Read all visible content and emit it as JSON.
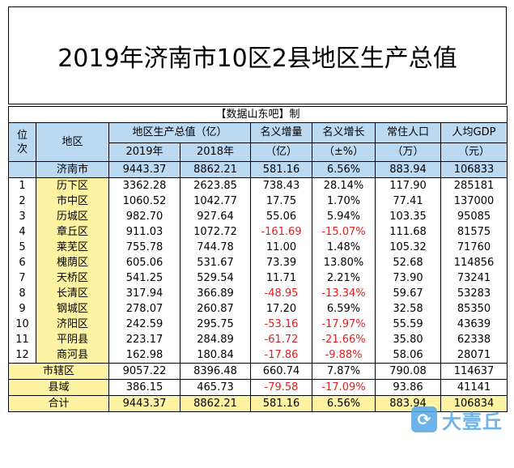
{
  "title": "2019年济南市10区2县地区生产总值",
  "credit": "【数据山东吧】制",
  "headers": {
    "rank": "位次",
    "region": "地区",
    "gdp": "地区生产总值（亿）",
    "y2019": "2019年",
    "y2018": "2018年",
    "nominal_increase_1": "名义增量",
    "nominal_increase_2": "（亿）",
    "nominal_growth_1": "名义增长",
    "nominal_growth_2": "（±%）",
    "population_1": "常住人口",
    "population_2": "（万）",
    "per_capita_1": "人均GDP",
    "per_capita_2": "（元）"
  },
  "city_row": {
    "region": "济南市",
    "y2019": "9443.37",
    "y2018": "8862.21",
    "increase": "581.16",
    "growth": "6.56%",
    "population": "883.94",
    "per_capita": "106833"
  },
  "rows": [
    {
      "rank": "1",
      "region": "历下区",
      "y2019": "3362.28",
      "y2018": "2623.85",
      "increase": "738.43",
      "growth": "28.14%",
      "population": "117.90",
      "per_capita": "285181",
      "neg": false
    },
    {
      "rank": "2",
      "region": "市中区",
      "y2019": "1060.52",
      "y2018": "1042.77",
      "increase": "17.75",
      "growth": "1.70%",
      "population": "77.41",
      "per_capita": "137000",
      "neg": false
    },
    {
      "rank": "3",
      "region": "历城区",
      "y2019": "982.70",
      "y2018": "927.64",
      "increase": "55.06",
      "growth": "5.94%",
      "population": "103.35",
      "per_capita": "95085",
      "neg": false
    },
    {
      "rank": "4",
      "region": "章丘区",
      "y2019": "911.03",
      "y2018": "1072.72",
      "increase": "-161.69",
      "growth": "-15.07%",
      "population": "111.68",
      "per_capita": "81575",
      "neg": true
    },
    {
      "rank": "5",
      "region": "莱芜区",
      "y2019": "755.78",
      "y2018": "744.78",
      "increase": "11.00",
      "growth": "1.48%",
      "population": "105.32",
      "per_capita": "71760",
      "neg": false
    },
    {
      "rank": "6",
      "region": "槐荫区",
      "y2019": "605.06",
      "y2018": "531.67",
      "increase": "73.39",
      "growth": "13.80%",
      "population": "52.68",
      "per_capita": "114856",
      "neg": false
    },
    {
      "rank": "7",
      "region": "天桥区",
      "y2019": "541.25",
      "y2018": "529.54",
      "increase": "11.71",
      "growth": "2.21%",
      "population": "73.90",
      "per_capita": "73241",
      "neg": false
    },
    {
      "rank": "8",
      "region": "长清区",
      "y2019": "317.94",
      "y2018": "366.89",
      "increase": "-48.95",
      "growth": "-13.34%",
      "population": "59.67",
      "per_capita": "53283",
      "neg": true
    },
    {
      "rank": "9",
      "region": "钢城区",
      "y2019": "278.07",
      "y2018": "260.87",
      "increase": "17.20",
      "growth": "6.59%",
      "population": "32.58",
      "per_capita": "85350",
      "neg": false
    },
    {
      "rank": "10",
      "region": "济阳区",
      "y2019": "242.59",
      "y2018": "295.75",
      "increase": "-53.16",
      "growth": "-17.97%",
      "population": "55.59",
      "per_capita": "43639",
      "neg": true
    },
    {
      "rank": "11",
      "region": "平阴县",
      "y2019": "223.17",
      "y2018": "284.89",
      "increase": "-61.72",
      "growth": "-21.66%",
      "population": "35.80",
      "per_capita": "62338",
      "neg": true
    },
    {
      "rank": "12",
      "region": "商河县",
      "y2019": "162.98",
      "y2018": "180.84",
      "increase": "-17.86",
      "growth": "-9.88%",
      "population": "58.06",
      "per_capita": "28071",
      "neg": true
    }
  ],
  "summary": [
    {
      "label": "市辖区",
      "y2019": "9057.22",
      "y2018": "8396.48",
      "increase": "660.74",
      "growth": "7.87%",
      "population": "790.08",
      "per_capita": "114637",
      "neg": false
    },
    {
      "label": "县域",
      "y2019": "386.15",
      "y2018": "465.73",
      "increase": "-79.58",
      "growth": "-17.09%",
      "population": "93.86",
      "per_capita": "41141",
      "neg": true
    },
    {
      "label": "合计",
      "y2019": "9443.37",
      "y2018": "8862.21",
      "increase": "581.16",
      "growth": "6.56%",
      "population": "883.94",
      "per_capita": "106834",
      "neg": false
    }
  ],
  "watermark": {
    "logo": "⟳",
    "text": "大壹丘"
  },
  "colors": {
    "header_blue": "#bcd9f2",
    "region_yellow": "#fdf3a2",
    "negative_red": "#e02020"
  }
}
